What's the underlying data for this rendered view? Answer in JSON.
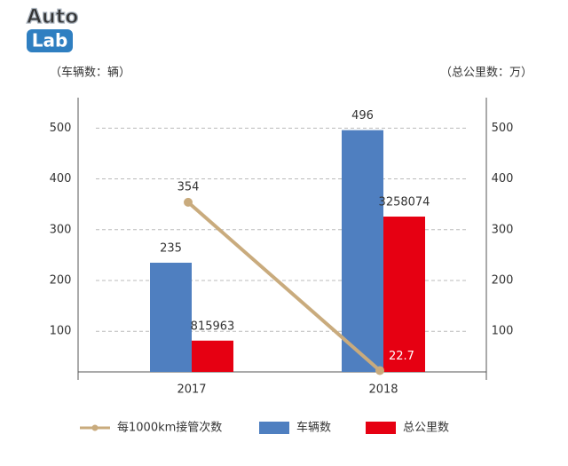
{
  "logo": {
    "top": "Auto",
    "bottom": "Lab"
  },
  "chart_data": {
    "type": "bar",
    "y_label": "（车辆数：辆）",
    "y2_label": "（总公里数：万）",
    "categories": [
      "2017",
      "2018"
    ],
    "series": [
      {
        "name": "车辆数",
        "color": "#4f7fc0",
        "values": [
          235,
          496
        ]
      },
      {
        "name": "总公里数",
        "color": "#e60012",
        "axis": "y2",
        "values": [
          81.5963,
          325.8074
        ],
        "value_labels": [
          "815963",
          "3258074"
        ]
      },
      {
        "name": "每1000km接管次数",
        "type": "line",
        "color": "#c9ab7d",
        "values": [
          354,
          22.7
        ]
      }
    ],
    "ylim": [
      20,
      560
    ],
    "yticks": [
      100,
      200,
      300,
      400,
      500
    ],
    "y2lim": [
      20,
      560
    ],
    "y2ticks": [
      100,
      200,
      300,
      400,
      500
    ],
    "grid": true,
    "legend": "bottom"
  }
}
